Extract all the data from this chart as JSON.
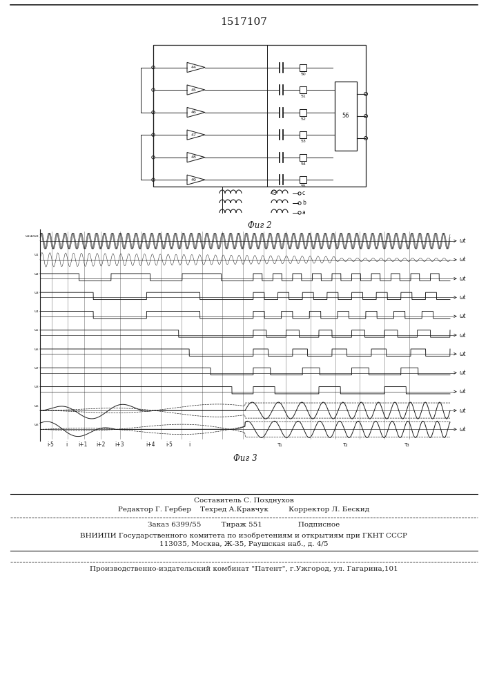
{
  "title": "1517107",
  "fig2_caption": "Фиг 2",
  "fig3_caption": "Фиг 3",
  "footer_line0": "Составитель С. Позднухов",
  "footer_line1": "Редактор Г. Гербер    Техред А.Кравчук         Корректор Л. Бескид",
  "footer_line2": "Заказ 6399/55         Тираж 551                Подписное",
  "footer_line3": "ВНИИПИ Государственного комитета по изобретениям и открытиям при ГКНТ СССР",
  "footer_line4": "113035, Москва, Ж-35, Раушская наб., д. 4/5",
  "footer_line5": "Производственно-издательский комбинат \"Патент\", г.Ужгород, ул. Гагарина,101",
  "bg_color": "#ffffff",
  "line_color": "#1a1a1a"
}
